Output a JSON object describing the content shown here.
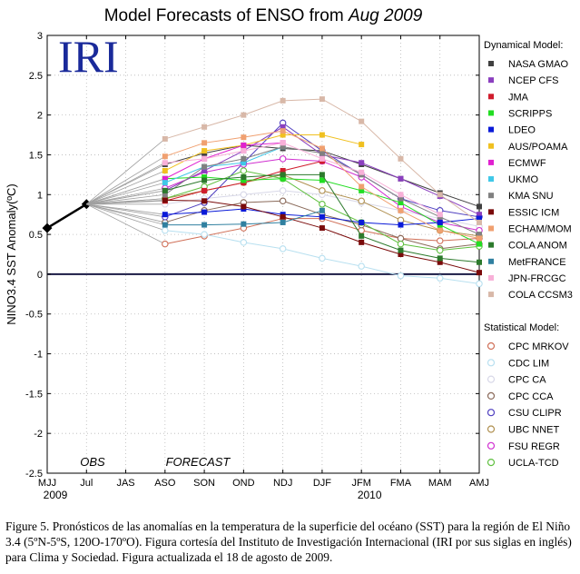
{
  "title_prefix": "Model Forecasts of ENSO from ",
  "title_date": "Aug 2009",
  "logo_text": "IRI",
  "caption": "Figure 5. Pronósticos de las anomalías en la temperatura de la superficie del océano (SST) para la región de El Niño 3.4 (5ºN-5ºS, 120O-170ºO). Figura cortesía del Instituto de Investigación Internacional (IRI por sus siglas en inglés) para Clima y Sociedad. Figura actualizada el 18 de agosto de 2009.",
  "chart_data": {
    "type": "line",
    "title": "Model Forecasts of ENSO from Aug 2009",
    "ylabel": "NINO3.4 SST Anomaly(ºC)",
    "xlabel": "",
    "categories": [
      "MJJ",
      "Jul",
      "JAS",
      "ASO",
      "SON",
      "OND",
      "NDJ",
      "DJF",
      "JFM",
      "FMA",
      "MAM",
      "AMJ"
    ],
    "year_labels": [
      {
        "at": "MJJ",
        "text": "2009"
      },
      {
        "at": "JFM",
        "text": "2010"
      }
    ],
    "annotations": [
      "OBS",
      "FORECAST"
    ],
    "ylim": [
      -2.5,
      3
    ],
    "yticks": [
      -2.5,
      -2,
      -1.5,
      -1,
      -0.5,
      0,
      0.5,
      1,
      1.5,
      2,
      2.5,
      3
    ],
    "grid": true,
    "legend_position": "right",
    "legend_dynamical_header": "Dynamical Model:",
    "legend_statistical_header": "Statistical Model:",
    "observed": {
      "name": "OBS",
      "color": "#000000",
      "points": [
        [
          "MJJ",
          0.58
        ],
        [
          "Jul",
          0.88
        ]
      ]
    },
    "dynamical": [
      {
        "name": "NASA GMAO",
        "color": "#404040",
        "values": [
          1.38,
          1.52,
          1.62,
          1.58,
          1.55,
          1.38,
          1.2,
          1.02,
          0.85
        ]
      },
      {
        "name": "NCEP CFS",
        "color": "#8b3fbf",
        "values": [
          1.05,
          1.3,
          1.55,
          1.85,
          1.5,
          1.4,
          1.2,
          0.98,
          0.75
        ]
      },
      {
        "name": "JMA",
        "color": "#d01c2c",
        "values": [
          0.92,
          1.05,
          1.15,
          1.3,
          1.42
        ]
      },
      {
        "name": "SCRIPPS",
        "color": "#22dd22",
        "values": [
          1.2,
          1.22,
          1.18,
          1.2,
          1.18,
          1.05,
          0.9,
          0.62,
          0.38
        ]
      },
      {
        "name": "LDEO",
        "color": "#0a1ad8",
        "values": [
          0.75,
          0.78,
          0.82,
          0.75,
          0.72,
          0.65,
          0.62,
          0.65,
          0.7
        ]
      },
      {
        "name": "AUS/POAMA",
        "color": "#f0c020",
        "values": [
          1.3,
          1.55,
          1.62,
          1.75,
          1.75,
          1.63
        ]
      },
      {
        "name": "ECMWF",
        "color": "#e020d0",
        "values": [
          1.2,
          1.45,
          1.62,
          1.65
        ]
      },
      {
        "name": "UKMO",
        "color": "#40c8e8",
        "values": [
          1.15,
          1.35,
          1.4,
          1.6
        ]
      },
      {
        "name": "KMA SNU",
        "color": "#808080",
        "values": [
          1.0,
          1.35,
          1.45,
          1.6,
          1.52,
          1.25,
          0.95,
          0.72,
          0.5
        ]
      },
      {
        "name": "ESSIC ICM",
        "color": "#7a0a0a",
        "values": [
          0.93,
          0.92,
          0.85,
          0.72,
          0.58,
          0.4,
          0.25,
          0.15,
          0.02
        ]
      },
      {
        "name": "ECHAM/MOM",
        "color": "#f0a070",
        "values": [
          1.48,
          1.65,
          1.72,
          1.8,
          1.58,
          1.1,
          0.8,
          0.55,
          0.45
        ]
      },
      {
        "name": "COLA ANOM",
        "color": "#2c7a2c",
        "values": [
          1.05,
          1.18,
          1.22,
          1.25,
          1.25,
          0.48,
          0.3,
          0.2,
          0.15
        ]
      },
      {
        "name": "MetFRANCE",
        "color": "#3080a0",
        "values": [
          0.62,
          0.62,
          0.63,
          0.65,
          0.8
        ]
      },
      {
        "name": "JPN-FRCGC",
        "color": "#f8b0d8",
        "values": [
          1.4,
          1.45,
          1.55,
          1.65,
          1.45,
          1.28,
          1.0,
          0.75
        ]
      },
      {
        "name": "COLA CCSM3",
        "color": "#d8b8a8",
        "values": [
          1.7,
          1.85,
          2.0,
          2.18,
          2.2,
          1.92,
          1.45,
          1.0,
          0.65
        ]
      }
    ],
    "statistical": [
      {
        "name": "CPC MRKOV",
        "color": "#d07058",
        "values": [
          0.38,
          0.48,
          0.58,
          0.7,
          0.7,
          0.55,
          0.45,
          0.42,
          0.45
        ]
      },
      {
        "name": "CDC LIM",
        "color": "#b8e0f0",
        "values": [
          0.55,
          0.5,
          0.4,
          0.32,
          0.2,
          0.1,
          -0.02,
          -0.05,
          -0.12
        ]
      },
      {
        "name": "CPC CA",
        "color": "#d8d8e8",
        "values": [
          0.88,
          0.95,
          1.0,
          1.05,
          1.0,
          0.9,
          0.8,
          0.7,
          0.6
        ]
      },
      {
        "name": "CPC CCA",
        "color": "#8a6a5a",
        "values": [
          0.65,
          0.8,
          0.9,
          0.92,
          0.75,
          0.62,
          0.45,
          0.32,
          0.38
        ]
      },
      {
        "name": "CSU CLIPR",
        "color": "#5040c0",
        "values": [
          0.72,
          0.9,
          1.4,
          1.9,
          1.55,
          1.25,
          0.95,
          0.8,
          0.72
        ]
      },
      {
        "name": "UBC NNET",
        "color": "#b09050",
        "values": [
          0.95,
          1.05,
          1.15,
          1.25,
          1.05,
          0.92,
          0.68,
          0.55,
          0.48
        ]
      },
      {
        "name": "FSU REGR",
        "color": "#d030d0",
        "values": [
          1.08,
          1.28,
          1.38,
          1.45,
          1.42,
          1.22,
          0.85,
          0.65,
          0.55
        ]
      },
      {
        "name": "UCLA-TCD",
        "color": "#60c040",
        "values": [
          0.95,
          1.1,
          1.3,
          1.2,
          0.88,
          0.65,
          0.38,
          0.3,
          0.35
        ]
      }
    ]
  }
}
